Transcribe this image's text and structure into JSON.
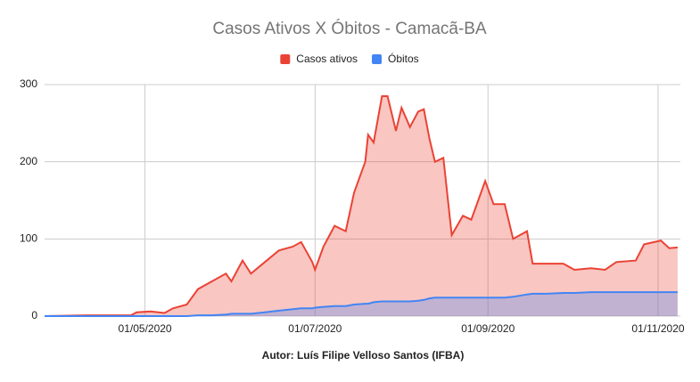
{
  "chart_data": {
    "type": "area",
    "title": "Casos Ativos X Óbitos - Camacã-BA",
    "x_label": "Autor: Luís Filipe Velloso Santos (IFBA)",
    "x": [
      "2020-03-26",
      "2020-04-10",
      "2020-04-26",
      "2020-04-28",
      "2020-05-03",
      "2020-05-08",
      "2020-05-11",
      "2020-05-16",
      "2020-05-20",
      "2020-05-25",
      "2020-05-30",
      "2020-06-01",
      "2020-06-05",
      "2020-06-08",
      "2020-06-13",
      "2020-06-18",
      "2020-06-23",
      "2020-06-26",
      "2020-06-30",
      "2020-07-01",
      "2020-07-04",
      "2020-07-08",
      "2020-07-12",
      "2020-07-15",
      "2020-07-19",
      "2020-07-20",
      "2020-07-22",
      "2020-07-25",
      "2020-07-27",
      "2020-07-30",
      "2020-08-01",
      "2020-08-04",
      "2020-08-07",
      "2020-08-09",
      "2020-08-11",
      "2020-08-13",
      "2020-08-16",
      "2020-08-19",
      "2020-08-23",
      "2020-08-26",
      "2020-08-31",
      "2020-09-03",
      "2020-09-07",
      "2020-09-10",
      "2020-09-15",
      "2020-09-17",
      "2020-09-22",
      "2020-09-28",
      "2020-10-02",
      "2020-10-08",
      "2020-10-13",
      "2020-10-17",
      "2020-10-24",
      "2020-10-27",
      "2020-11-02",
      "2020-11-05",
      "2020-11-08"
    ],
    "series": [
      {
        "name": "Casos ativos",
        "color": "#ea4335",
        "values": [
          0,
          1,
          1,
          5,
          6,
          4,
          10,
          15,
          35,
          45,
          55,
          45,
          72,
          55,
          70,
          85,
          90,
          96,
          70,
          60,
          90,
          117,
          110,
          160,
          200,
          235,
          225,
          285,
          285,
          240,
          270,
          245,
          265,
          268,
          230,
          200,
          205,
          105,
          130,
          125,
          175,
          145,
          145,
          100,
          110,
          68,
          68,
          68,
          60,
          62,
          60,
          70,
          72,
          93,
          98,
          88,
          89
        ]
      },
      {
        "name": "Óbitos",
        "color": "#4285f4",
        "values": [
          0,
          0,
          0,
          0,
          0,
          0,
          0,
          0,
          1,
          1,
          2,
          3,
          3,
          3,
          5,
          7,
          9,
          10,
          10,
          11,
          12,
          13,
          13,
          15,
          16,
          16,
          18,
          19,
          19,
          19,
          19,
          19,
          20,
          21,
          23,
          24,
          24,
          24,
          24,
          24,
          24,
          24,
          24,
          25,
          28,
          29,
          29,
          30,
          30,
          31,
          31,
          31,
          31,
          31,
          31,
          31,
          31
        ]
      }
    ],
    "xlim": [
      "2020-03-26",
      "2020-11-09"
    ],
    "xticks": [
      {
        "value": "2020-05-01",
        "label": "01/05/2020"
      },
      {
        "value": "2020-07-01",
        "label": "01/07/2020"
      },
      {
        "value": "2020-09-01",
        "label": "01/09/2020"
      },
      {
        "value": "2020-11-01",
        "label": "01/11/2020"
      }
    ],
    "ylim": [
      0,
      300
    ],
    "yticks": [
      0,
      100,
      200,
      300
    ],
    "grid": true,
    "legend": "top"
  }
}
